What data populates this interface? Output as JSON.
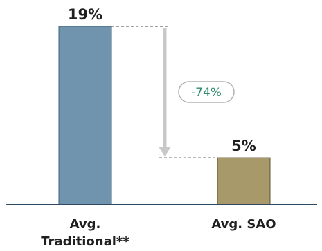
{
  "chart_data": {
    "type": "bar",
    "categories": [
      "Avg. Traditional**",
      "Avg. SAO"
    ],
    "category_lines": [
      [
        "Avg.",
        "Traditional**"
      ],
      [
        "Avg. SAO"
      ]
    ],
    "values": [
      19,
      5
    ],
    "value_labels": [
      "19%",
      "5%"
    ],
    "ylim": [
      0,
      19
    ],
    "grid": false,
    "legend": "none",
    "annotation": {
      "label": "-74%",
      "from_category": "Avg. Traditional**",
      "to_category": "Avg. SAO"
    },
    "colors": {
      "bars": [
        "#7094ad",
        "#a8996a"
      ],
      "bar_stroke": "#3f5f78",
      "bar_stroke_alt": "#5e5230",
      "axis": "#2c4a63",
      "arrow": "#c8c8c8",
      "annotation_text": "#2e8b6e",
      "annotation_border": "#b0b0b0",
      "labels": "#1f1f1f"
    }
  }
}
